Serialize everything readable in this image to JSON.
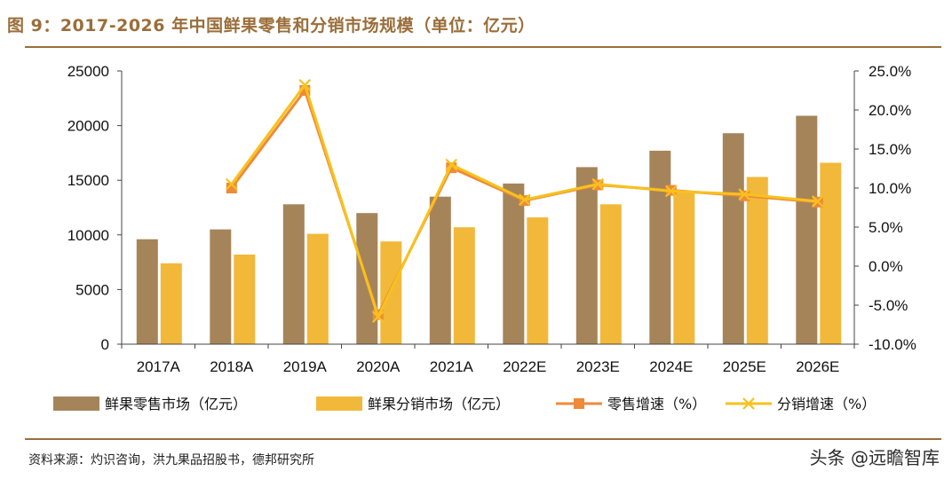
{
  "page": {
    "title": "图 9：2017-2026 年中国鲜果零售和分销市场规模（单位：亿元）",
    "source": "资料来源：灼识咨询，洪九果品招股书，德邦研究所",
    "watermark": "头条 @远瞻智库"
  },
  "chart_data": {
    "type": "bar",
    "title": "2017-2026 年中国鲜果零售和分销市场规模（单位：亿元）",
    "categories": [
      "2017A",
      "2018A",
      "2019A",
      "2020A",
      "2021A",
      "2022E",
      "2023E",
      "2024E",
      "2025E",
      "2026E"
    ],
    "ylim": [
      0,
      25000
    ],
    "y_ticks": [
      "0",
      "5000",
      "10000",
      "15000",
      "20000",
      "25000"
    ],
    "y2lim": [
      -10,
      25
    ],
    "y2_ticks": [
      "-10.0%",
      "-5.0%",
      "0.0%",
      "5.0%",
      "10.0%",
      "15.0%",
      "20.0%",
      "25.0%"
    ],
    "legend_position": "bottom",
    "series": [
      {
        "name": "鲜果零售市场（亿元）",
        "kind": "bar",
        "axis": "left",
        "color": "#a6845a",
        "values": [
          9600,
          10500,
          12800,
          12000,
          13500,
          14700,
          16200,
          17700,
          19300,
          20900
        ]
      },
      {
        "name": "鲜果分销市场（亿元）",
        "kind": "bar",
        "axis": "left",
        "color": "#f2b83a",
        "values": [
          7400,
          8200,
          10100,
          9400,
          10700,
          11600,
          12800,
          14000,
          15300,
          16600
        ]
      },
      {
        "name": "零售增速（%）",
        "kind": "line",
        "marker": "square",
        "axis": "right",
        "color": "#ee8a3a",
        "values": [
          null,
          10.0,
          22.5,
          -6.2,
          12.6,
          8.4,
          10.4,
          9.7,
          9.0,
          8.2
        ]
      },
      {
        "name": "分销增速（%）",
        "kind": "line",
        "marker": "x",
        "axis": "right",
        "color": "#f7c21c",
        "values": [
          null,
          10.5,
          23.2,
          -6.5,
          13.0,
          8.5,
          10.5,
          9.6,
          9.2,
          8.3
        ]
      }
    ]
  }
}
